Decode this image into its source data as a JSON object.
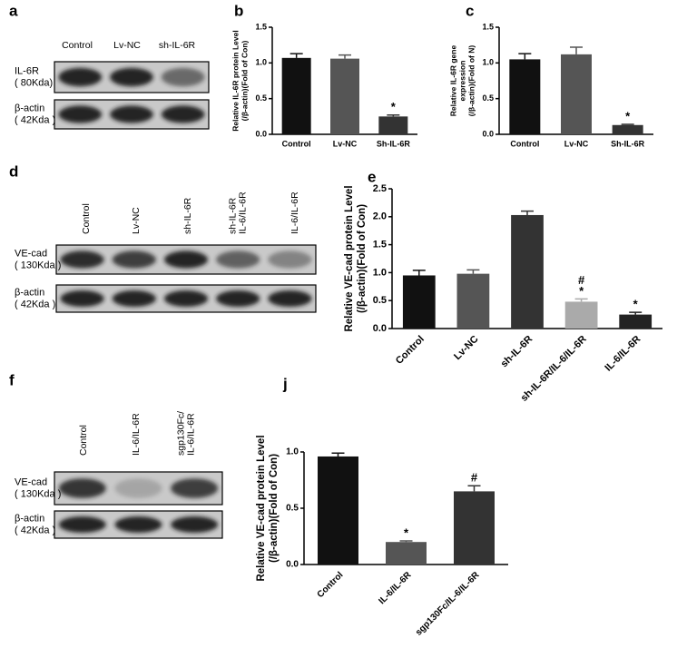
{
  "blots": [
    {
      "panel_label": "a",
      "lanes": [
        [
          "Control"
        ],
        [
          "Lv-NC"
        ],
        [
          "sh-IL-6R"
        ]
      ],
      "rows": [
        {
          "lines": [
            "IL-6R",
            "( 80Kda)"
          ]
        },
        {
          "lines": [
            "β-actin",
            "( 42Kda )"
          ]
        }
      ]
    },
    {
      "panel_label": "d",
      "lanes": [
        [
          "Control"
        ],
        [
          "Lv-NC"
        ],
        [
          "sh-IL-6R"
        ],
        [
          "sh-IL-6R",
          "IL-6/IL-6R"
        ],
        [
          "IL-6/IL-6R"
        ]
      ],
      "rows": [
        {
          "lines": [
            "VE-cad",
            "( 130Kda )"
          ]
        },
        {
          "lines": [
            "β-actin",
            "( 42Kda )"
          ]
        }
      ]
    },
    {
      "panel_label": "f",
      "lanes": [
        [
          "Control"
        ],
        [
          "IL-6/IL-6R"
        ],
        [
          "sgp130Fc/",
          "IL-6/IL-6R"
        ]
      ],
      "rows": [
        {
          "lines": [
            "VE-cad",
            "( 130Kda )"
          ]
        },
        {
          "lines": [
            "β-actin",
            "( 42Kda )"
          ]
        }
      ]
    }
  ],
  "chart_data": [
    {
      "type": "bar",
      "panel_label": "b",
      "y_label": [
        "Relative IL-6R protein Level",
        "(/β-actin)(Fold of Con)"
      ],
      "categories": [
        "Control",
        "Lv-NC",
        "Sh-IL-6R"
      ],
      "values": [
        1.07,
        1.06,
        0.25
      ],
      "errors": [
        0.06,
        0.05,
        0.02
      ],
      "colors": [
        "#111111",
        "#555555",
        "#333333"
      ],
      "bar_marks": [
        null,
        null,
        [
          "*"
        ]
      ],
      "ylim": [
        0,
        1.5
      ],
      "yticks": [
        {
          "value": 0,
          "label": "0.0"
        },
        {
          "value": 0.5,
          "label": "0.5"
        },
        {
          "value": 1,
          "label": "1.0"
        },
        {
          "value": 1.5,
          "label": "1.5"
        }
      ]
    },
    {
      "type": "bar",
      "panel_label": "c",
      "y_label": [
        "Relative IL-6R gene",
        "expression",
        "(/β-actin)(Fold of N)"
      ],
      "categories": [
        "Control",
        "Lv-NC",
        "Sh-IL-6R"
      ],
      "values": [
        1.05,
        1.12,
        0.13
      ],
      "errors": [
        0.08,
        0.1,
        0.01
      ],
      "colors": [
        "#111111",
        "#555555",
        "#333333"
      ],
      "bar_marks": [
        null,
        null,
        [
          "*"
        ]
      ],
      "ylim": [
        0,
        1.5
      ],
      "yticks": [
        {
          "value": 0,
          "label": "0.0"
        },
        {
          "value": 0.5,
          "label": "0.5"
        },
        {
          "value": 1,
          "label": "1.0"
        },
        {
          "value": 1.5,
          "label": "1.5"
        }
      ]
    },
    {
      "type": "bar",
      "panel_label": "e",
      "y_label": [
        "Relative VE-cad protein Level",
        "(/β-actin)(Fold of Con)"
      ],
      "categories": [
        "Control",
        "Lv-NC",
        "sh-IL-6R",
        "sh-IL-6R/IL-6/IL-6R",
        "IL-6/IL-6R"
      ],
      "values": [
        0.95,
        0.98,
        2.03,
        0.48,
        0.25
      ],
      "errors": [
        0.09,
        0.07,
        0.07,
        0.05,
        0.04
      ],
      "colors": [
        "#111111",
        "#555555",
        "#333333",
        "#aaaaaa",
        "#222222"
      ],
      "bar_marks": [
        null,
        null,
        null,
        [
          "#",
          "*"
        ],
        [
          "*"
        ]
      ],
      "ylim": [
        0,
        2.5
      ],
      "yticks": [
        {
          "value": 0,
          "label": "0.0"
        },
        {
          "value": 0.5,
          "label": "0.5"
        },
        {
          "value": 1,
          "label": "1.0"
        },
        {
          "value": 1.5,
          "label": "1.5"
        },
        {
          "value": 2,
          "label": "2.0"
        },
        {
          "value": 2.5,
          "label": "2.5"
        }
      ]
    },
    {
      "type": "bar",
      "panel_label": "j",
      "y_label": [
        "Relative VE-cad protein Level",
        "(/β-actin)(Fold of Con)"
      ],
      "categories": [
        "Control",
        "IL-6/IL-6R",
        "sgp130Fc/IL-6/IL-6R"
      ],
      "values": [
        0.96,
        0.2,
        0.65
      ],
      "errors": [
        0.03,
        0.01,
        0.05
      ],
      "colors": [
        "#111111",
        "#555555",
        "#333333"
      ],
      "bar_marks": [
        null,
        [
          "*"
        ],
        [
          "#"
        ]
      ],
      "ylim": [
        0,
        1
      ],
      "yticks": [
        {
          "value": 0,
          "label": "0.0"
        },
        {
          "value": 0.5,
          "label": "0.5"
        },
        {
          "value": 1,
          "label": "1.0"
        }
      ]
    }
  ]
}
